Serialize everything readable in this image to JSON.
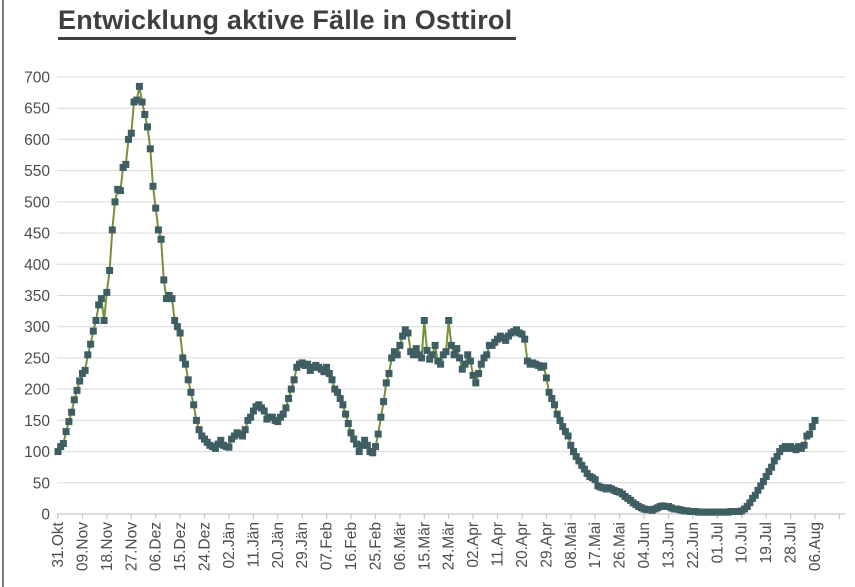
{
  "title_block": {
    "title": "Entwicklung aktive Fälle in Osttirol"
  },
  "colors": {
    "line": "#75923A",
    "marker": "#3E5E63",
    "gridline": "#D9D9D9",
    "axis": "#C6C6C6",
    "label_text": "#4C4C4C",
    "title_text": "#3F3F3F",
    "window_border": "#7A7A7A"
  },
  "chart_data": {
    "type": "line",
    "title": "Entwicklung aktive Fälle in Osttirol",
    "legend": "none",
    "grid": "horizontal",
    "marker_shape": "square",
    "line_color": "#75923A",
    "marker_color": "#3E5E63",
    "ylim": [
      0,
      700
    ],
    "y_tick_step": 50,
    "y_ticks": [
      0,
      50,
      100,
      150,
      200,
      250,
      300,
      350,
      400,
      450,
      500,
      550,
      600,
      650,
      700
    ],
    "x_label_interval_days": 9,
    "x_tick_labels": [
      "31.Okt",
      "09.Nov",
      "18.Nov",
      "27.Nov",
      "06.Dez",
      "15.Dez",
      "24.Dez",
      "02.Jän",
      "11.Jän",
      "20.Jän",
      "29.Jän",
      "07.Feb",
      "16.Feb",
      "25.Feb",
      "06.Mär",
      "15.Mär",
      "24.Mär",
      "02.Apr",
      "11.Apr",
      "20.Apr",
      "29.Apr",
      "08.Mai",
      "17.Mai",
      "26.Mai",
      "04.Jun",
      "13.Jun",
      "22.Jun",
      "01.Jul",
      "10.Jul",
      "19.Jul",
      "28.Jul",
      "06.Aug"
    ],
    "series": [
      {
        "name": "aktive Fälle",
        "values": [
          100,
          108,
          113,
          132,
          148,
          163,
          183,
          198,
          213,
          225,
          230,
          255,
          272,
          293,
          310,
          335,
          345,
          310,
          355,
          390,
          455,
          500,
          520,
          518,
          555,
          560,
          600,
          610,
          660,
          663,
          685,
          660,
          640,
          620,
          585,
          525,
          490,
          455,
          440,
          375,
          345,
          350,
          345,
          310,
          300,
          290,
          250,
          240,
          215,
          195,
          175,
          150,
          135,
          125,
          120,
          115,
          110,
          108,
          105,
          112,
          118,
          110,
          108,
          107,
          120,
          125,
          130,
          128,
          125,
          135,
          150,
          155,
          165,
          172,
          175,
          170,
          165,
          152,
          155,
          155,
          150,
          148,
          155,
          160,
          170,
          185,
          200,
          215,
          235,
          240,
          242,
          238,
          240,
          230,
          235,
          238,
          235,
          232,
          228,
          235,
          225,
          215,
          200,
          195,
          185,
          175,
          160,
          145,
          130,
          120,
          112,
          100,
          110,
          118,
          110,
          100,
          98,
          108,
          128,
          155,
          180,
          210,
          225,
          250,
          260,
          255,
          270,
          285,
          295,
          290,
          260,
          255,
          265,
          255,
          250,
          310,
          262,
          248,
          255,
          270,
          245,
          240,
          255,
          260,
          310,
          270,
          255,
          265,
          250,
          232,
          240,
          255,
          245,
          222,
          210,
          225,
          240,
          250,
          255,
          270,
          270,
          275,
          280,
          285,
          282,
          278,
          285,
          290,
          292,
          295,
          290,
          288,
          280,
          245,
          240,
          242,
          240,
          238,
          235,
          237,
          218,
          195,
          185,
          175,
          160,
          150,
          140,
          132,
          125,
          110,
          100,
          92,
          85,
          78,
          72,
          65,
          60,
          58,
          55,
          45,
          43,
          42,
          40,
          42,
          40,
          38,
          36,
          35,
          32,
          28,
          25,
          22,
          18,
          15,
          12,
          10,
          8,
          7,
          7,
          6,
          8,
          10,
          12,
          13,
          12,
          12,
          10,
          8,
          8,
          7,
          6,
          5,
          5,
          4,
          4,
          4,
          3,
          3,
          3,
          3,
          3,
          3,
          3,
          3,
          3,
          3,
          3,
          3,
          4,
          4,
          4,
          4,
          5,
          8,
          12,
          18,
          25,
          30,
          38,
          45,
          52,
          60,
          68,
          75,
          85,
          92,
          100,
          105,
          108,
          105,
          108,
          105,
          103,
          108,
          105,
          110,
          125,
          128,
          140,
          150
        ]
      }
    ]
  }
}
